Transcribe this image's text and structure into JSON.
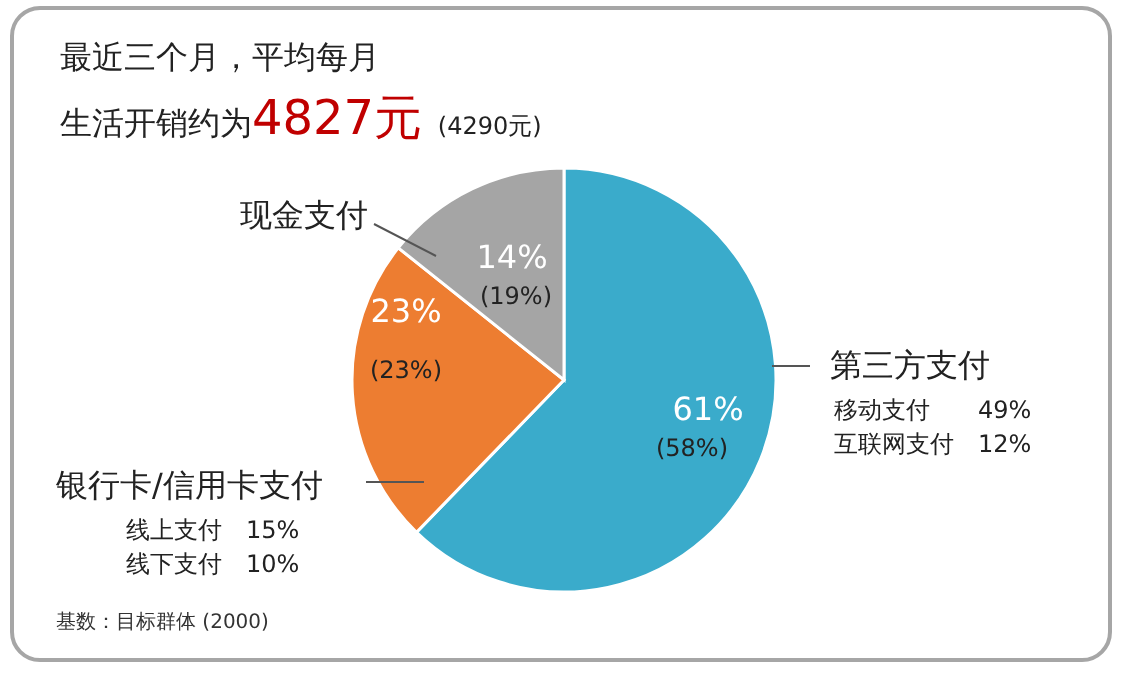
{
  "chart_data": {
    "type": "pie",
    "title": "最近三个月，平均每月",
    "subtitle": "生活开销约为4827元 (4290元)",
    "categories": [
      "第三方支付",
      "银行卡/信用卡支付",
      "现金支付"
    ],
    "values": [
      61,
      23,
      14
    ],
    "colors": [
      "#3aabcb",
      "#ed7d31",
      "#a5a5a5"
    ],
    "value_labels": [
      "61%",
      "23%",
      "14%"
    ],
    "annotations": [
      "(58%)",
      "(23%)",
      "(19%)",
      "移动支付　　49%",
      "互联网支付　12%",
      "线上支付　15%",
      "线下支付　10%",
      "基数：目标群体 (2000)"
    ]
  }
}
